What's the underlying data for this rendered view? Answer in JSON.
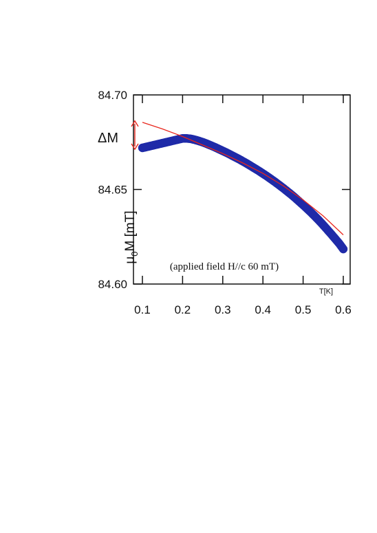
{
  "chart_data": {
    "type": "scatter",
    "ylabel": "μ0M [mT]",
    "xunit_label": "T[K]",
    "annotation": "(applied field H//c 60 mT)",
    "delta_label": "ΔM",
    "xlim": [
      0.1,
      0.6
    ],
    "ylim": [
      84.6,
      84.7
    ],
    "x_ticks": [
      "0.1",
      "0.2",
      "0.3",
      "0.4",
      "0.5",
      "0.6"
    ],
    "y_ticks": [
      "84.70",
      "84.65",
      "84.60"
    ],
    "series": [
      {
        "kind": "measured",
        "color": "#1f2aa8",
        "points": [
          [
            0.1,
            84.672
          ],
          [
            0.11,
            84.6725
          ],
          [
            0.12,
            84.673
          ],
          [
            0.13,
            84.6735
          ],
          [
            0.14,
            84.674
          ],
          [
            0.15,
            84.6745
          ],
          [
            0.16,
            84.675
          ],
          [
            0.17,
            84.6755
          ],
          [
            0.18,
            84.676
          ],
          [
            0.19,
            84.6765
          ],
          [
            0.2,
            84.677
          ],
          [
            0.21,
            84.677
          ],
          [
            0.22,
            84.6768
          ],
          [
            0.23,
            84.6763
          ],
          [
            0.24,
            84.6757
          ],
          [
            0.25,
            84.675
          ],
          [
            0.26,
            84.6742
          ],
          [
            0.27,
            84.6733
          ],
          [
            0.28,
            84.6724
          ],
          [
            0.29,
            84.6714
          ],
          [
            0.3,
            84.6704
          ],
          [
            0.31,
            84.6694
          ],
          [
            0.32,
            84.6683
          ],
          [
            0.33,
            84.6672
          ],
          [
            0.34,
            84.6661
          ],
          [
            0.35,
            84.6649
          ],
          [
            0.36,
            84.6637
          ],
          [
            0.37,
            84.6624
          ],
          [
            0.38,
            84.6611
          ],
          [
            0.39,
            84.6598
          ],
          [
            0.4,
            84.6584
          ],
          [
            0.41,
            84.657
          ],
          [
            0.42,
            84.6555
          ],
          [
            0.43,
            84.654
          ],
          [
            0.44,
            84.6524
          ],
          [
            0.45,
            84.6508
          ],
          [
            0.46,
            84.6491
          ],
          [
            0.47,
            84.6474
          ],
          [
            0.48,
            84.6456
          ],
          [
            0.49,
            84.6437
          ],
          [
            0.5,
            84.6418
          ],
          [
            0.51,
            84.6398
          ],
          [
            0.52,
            84.6378
          ],
          [
            0.53,
            84.6357
          ],
          [
            0.54,
            84.6335
          ],
          [
            0.55,
            84.6312
          ],
          [
            0.56,
            84.6288
          ],
          [
            0.57,
            84.6264
          ],
          [
            0.58,
            84.6239
          ],
          [
            0.59,
            84.6214
          ],
          [
            0.6,
            84.6185
          ]
        ]
      },
      {
        "kind": "fit",
        "color": "#e8261d",
        "points": [
          [
            0.1,
            84.6855
          ],
          [
            0.15,
            84.682
          ],
          [
            0.2,
            84.678
          ],
          [
            0.25,
            84.6735
          ],
          [
            0.3,
            84.669
          ],
          [
            0.35,
            84.664
          ],
          [
            0.4,
            84.6585
          ],
          [
            0.45,
            84.652
          ],
          [
            0.5,
            84.6445
          ],
          [
            0.55,
            84.636
          ],
          [
            0.6,
            84.626
          ]
        ]
      }
    ],
    "delta_range": [
      84.672,
      84.6855
    ]
  }
}
